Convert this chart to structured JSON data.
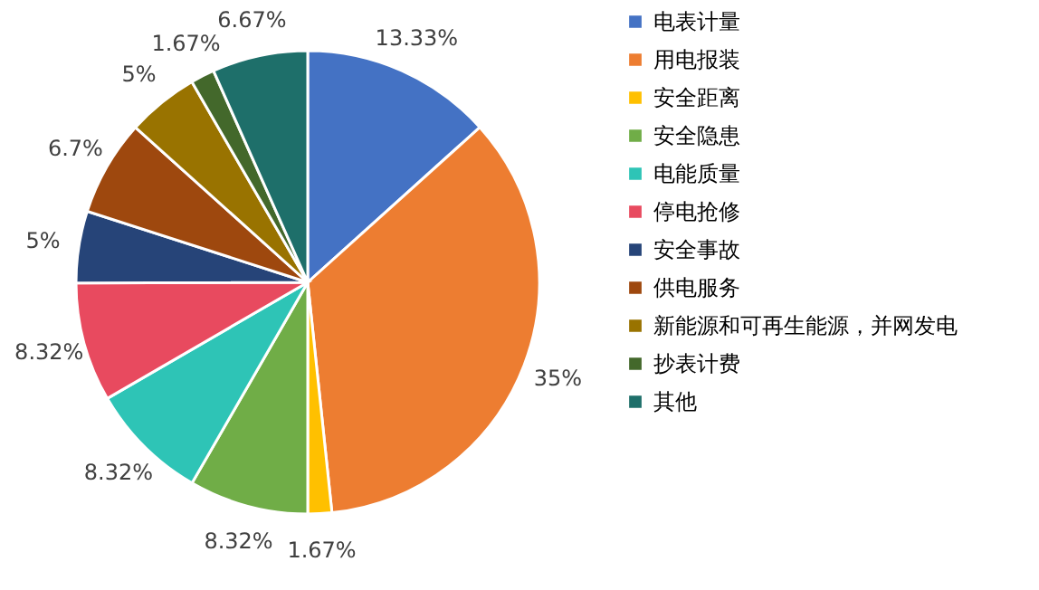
{
  "chart_data": {
    "type": "pie",
    "categories": [
      "电表计量",
      "用电报装",
      "安全距离",
      "安全隐患",
      "电能质量",
      "停电抢修",
      "安全事故",
      "供电服务",
      "新能源和可再生能源，并网发电",
      "抄表计费",
      "其他"
    ],
    "values": [
      13.33,
      35,
      1.67,
      8.32,
      8.32,
      8.32,
      5,
      6.7,
      5,
      1.67,
      6.67
    ],
    "value_labels": [
      "13.33%",
      "35%",
      "1.67%",
      "8.32%",
      "8.32%",
      "8.32%",
      "5%",
      "6.7%",
      "5%",
      "1.67%",
      "6.67%"
    ],
    "colors": [
      "#4472c4",
      "#ed7d31",
      "#ffc000",
      "#70ad47",
      "#2ec4b6",
      "#e84a5f",
      "#264478",
      "#9e480e",
      "#997300",
      "#43682b",
      "#1e6f6a"
    ],
    "legend": "right"
  }
}
